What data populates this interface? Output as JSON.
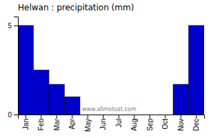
{
  "chart_data": {
    "type": "bar",
    "title": "Helwan : precipitation (mm)",
    "categories": [
      "Jan",
      "Feb",
      "Mar",
      "Apr",
      "May",
      "Jun",
      "Jul",
      "Aug",
      "Sep",
      "Oct",
      "Nov",
      "Dec"
    ],
    "values": [
      5.0,
      2.5,
      1.7,
      1.0,
      0.0,
      0.0,
      0.0,
      0.0,
      0.0,
      0.0,
      1.7,
      5.0
    ],
    "color": "#0000cc",
    "ylim": [
      0,
      5.5
    ],
    "yticks": [
      0,
      5
    ],
    "grid": false,
    "annotations": [
      "www.allmetsat.com"
    ]
  }
}
